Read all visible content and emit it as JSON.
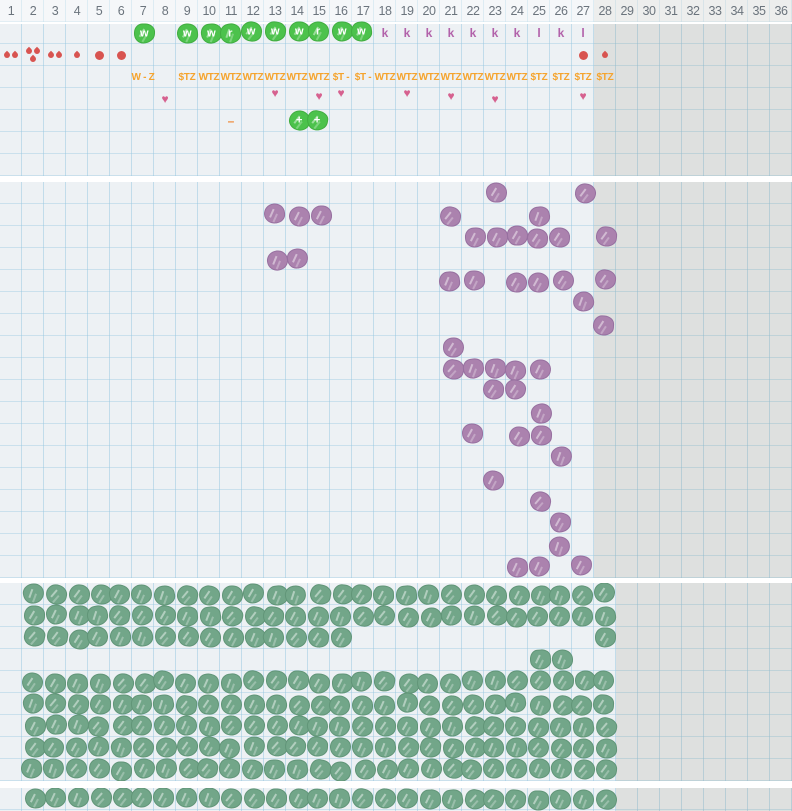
{
  "palette": {
    "background": "#edf1f4",
    "grid_line": "#a0c8e0",
    "shade": "rgba(125,118,88,0.13)",
    "green": "#4cc24c",
    "sage": "#72a689",
    "purple": "#ab82ae",
    "red": "#d85450",
    "orange": "#f5a42e",
    "heart_pink": "#d6618f",
    "mauve": "#b262aa",
    "number_gray": "#6b747d"
  },
  "header": {
    "week_numbers": [
      "1",
      "2",
      "3",
      "4",
      "5",
      "6",
      "7",
      "8",
      "9",
      "10",
      "11",
      "12",
      "13",
      "14",
      "15",
      "16",
      "17",
      "18",
      "19",
      "20",
      "21",
      "22",
      "23",
      "24",
      "25",
      "26",
      "27",
      "28",
      "29",
      "30",
      "31",
      "32",
      "33",
      "34",
      "35",
      "36"
    ]
  },
  "top": {
    "letter_row": [
      {
        "col": 7,
        "style": "blob",
        "letter": "w"
      },
      {
        "col": 9,
        "style": "blob",
        "letter": "w"
      },
      {
        "col": 10,
        "style": "blob",
        "letter": "w"
      },
      {
        "col": 11,
        "style": "blob",
        "letter": "r"
      },
      {
        "col": 12,
        "style": "blob",
        "letter": "w"
      },
      {
        "col": 13,
        "style": "blob",
        "letter": "w"
      },
      {
        "col": 14,
        "style": "blob",
        "letter": "w"
      },
      {
        "col": 15,
        "style": "blob",
        "letter": "r"
      },
      {
        "col": 16,
        "style": "blob",
        "letter": "w"
      },
      {
        "col": 17,
        "style": "blob",
        "letter": "w"
      },
      {
        "col": 18,
        "style": "plain",
        "letter": "k"
      },
      {
        "col": 19,
        "style": "plain",
        "letter": "k"
      },
      {
        "col": 20,
        "style": "plain",
        "letter": "k"
      },
      {
        "col": 21,
        "style": "plain",
        "letter": "k"
      },
      {
        "col": 22,
        "style": "plain",
        "letter": "k"
      },
      {
        "col": 23,
        "style": "plain",
        "letter": "k"
      },
      {
        "col": 24,
        "style": "plain",
        "letter": "k"
      },
      {
        "col": 25,
        "style": "plain",
        "letter": "l"
      },
      {
        "col": 26,
        "style": "plain",
        "letter": "k"
      },
      {
        "col": 27,
        "style": "plain",
        "letter": "l"
      }
    ],
    "water_row": [
      {
        "col": 1,
        "icon": "drop",
        "count": 2
      },
      {
        "col": 2,
        "icon": "drop",
        "count": 3
      },
      {
        "col": 3,
        "icon": "drop",
        "count": 2
      },
      {
        "col": 4,
        "icon": "drop",
        "count": 1
      },
      {
        "col": 5,
        "icon": "dot",
        "count": 1
      },
      {
        "col": 6,
        "icon": "dot",
        "count": 1
      },
      {
        "col": 27,
        "icon": "dot",
        "count": 1
      },
      {
        "col": 28,
        "icon": "drop",
        "count": 1
      }
    ],
    "code_row": [
      {
        "col": 7,
        "text": "W - Z"
      },
      {
        "col": 9,
        "text": "$TZ"
      },
      {
        "col": 10,
        "text": "WTZ"
      },
      {
        "col": 11,
        "text": "WTZ"
      },
      {
        "col": 12,
        "text": "WTZ"
      },
      {
        "col": 13,
        "text": "WTZ"
      },
      {
        "col": 14,
        "text": "WTZ"
      },
      {
        "col": 15,
        "text": "WTZ"
      },
      {
        "col": 16,
        "text": "$T -"
      },
      {
        "col": 17,
        "text": "$T -"
      },
      {
        "col": 18,
        "text": "WTZ"
      },
      {
        "col": 19,
        "text": "WTZ"
      },
      {
        "col": 20,
        "text": "WTZ"
      },
      {
        "col": 21,
        "text": "WTZ"
      },
      {
        "col": 22,
        "text": "WTZ"
      },
      {
        "col": 23,
        "text": "WTZ"
      },
      {
        "col": 24,
        "text": "WTZ"
      },
      {
        "col": 25,
        "text": "$TZ"
      },
      {
        "col": 26,
        "text": "$TZ"
      },
      {
        "col": 27,
        "text": "$TZ"
      },
      {
        "col": 28,
        "text": "$TZ"
      }
    ],
    "heart_row": {
      "cols": [
        8,
        13,
        15,
        16,
        19,
        21,
        23,
        27
      ],
      "glyph": "♥"
    },
    "extra_row": [
      {
        "col": 11,
        "type": "dash",
        "glyph": "–"
      },
      {
        "col": 14,
        "type": "plus_blob",
        "letter": "+"
      },
      {
        "col": 15,
        "type": "plus_blob",
        "letter": "+"
      }
    ]
  },
  "middle": {
    "rows": [
      [
        23,
        27
      ],
      [
        13,
        14,
        15,
        21,
        25
      ],
      [
        22,
        23,
        24,
        25,
        26,
        28
      ],
      [
        13,
        14
      ],
      [
        21,
        22,
        24,
        25,
        26,
        28
      ],
      [
        27
      ],
      [
        28
      ],
      [
        21
      ],
      [
        21,
        22,
        23,
        24,
        25
      ],
      [
        23,
        24
      ],
      [
        25
      ],
      [
        22,
        24,
        25
      ],
      [
        26
      ],
      [
        23
      ],
      [
        25
      ],
      [
        26
      ],
      [
        26
      ],
      [
        24,
        25,
        27
      ]
    ]
  },
  "bottom": {
    "rows": [
      {
        "start": 2,
        "end": 28
      },
      {
        "start": 2,
        "end": 28
      },
      {
        "start": 2,
        "end": 16,
        "extra": [
          28
        ]
      },
      {
        "cols": [
          25,
          26
        ]
      },
      {
        "start": 2,
        "end": 28
      },
      {
        "start": 2,
        "end": 28
      },
      {
        "start": 2,
        "end": 28
      },
      {
        "start": 2,
        "end": 28
      },
      {
        "start": 2,
        "end": 28
      }
    ]
  },
  "footer": {
    "rows": [
      {
        "start": 2,
        "end": 28
      }
    ]
  },
  "shade": {
    "top_start_col": 28,
    "middle_start_col": 28,
    "bottom_start_col": 29,
    "footer_start_col": 29
  }
}
